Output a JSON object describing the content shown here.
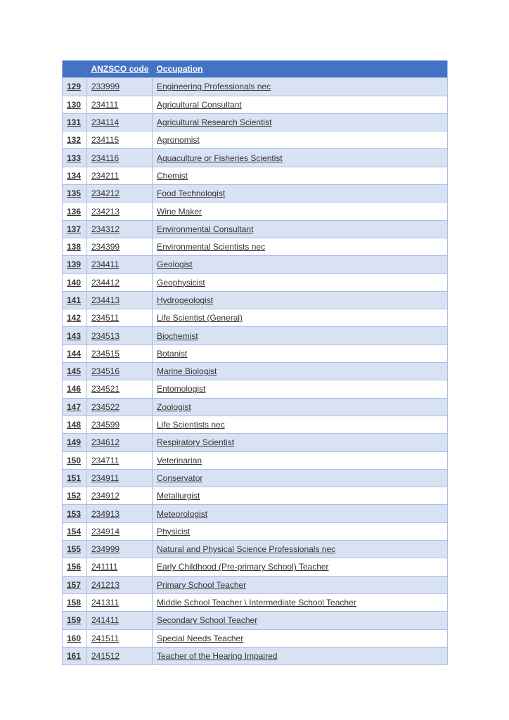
{
  "table": {
    "headers": [
      "",
      "ANZSCO code",
      "Occupation"
    ],
    "rows": [
      [
        "129",
        "233999",
        "Engineering Professionals nec"
      ],
      [
        "130",
        "234111",
        "Agricultural Consultant"
      ],
      [
        "131",
        "234114",
        "Agricultural Research Scientist"
      ],
      [
        "132",
        "234115",
        "Agronomist"
      ],
      [
        "133",
        "234116",
        "Aquaculture or Fisheries Scientist"
      ],
      [
        "134",
        "234211",
        "Chemist"
      ],
      [
        "135",
        "234212",
        "Food Technologist"
      ],
      [
        "136",
        "234213",
        "Wine Maker"
      ],
      [
        "137",
        "234312",
        "Environmental Consultant"
      ],
      [
        "138",
        "234399",
        "Environmental Scientists nec"
      ],
      [
        "139",
        "234411",
        "Geologist"
      ],
      [
        "140",
        "234412",
        "Geophysicist"
      ],
      [
        "141",
        "234413",
        "Hydrogeologist"
      ],
      [
        "142",
        "234511",
        "Life Scientist (General)"
      ],
      [
        "143",
        "234513",
        "Biochemist"
      ],
      [
        "144",
        "234515",
        "Botanist"
      ],
      [
        "145",
        "234516",
        "Marine Biologist"
      ],
      [
        "146",
        "234521",
        "Entomologist"
      ],
      [
        "147",
        "234522",
        "Zoologist"
      ],
      [
        "148",
        "234599",
        "Life Scientists nec"
      ],
      [
        "149",
        "234612",
        "Respiratory Scientist"
      ],
      [
        "150",
        "234711",
        "Veterinarian"
      ],
      [
        "151",
        "234911",
        "Conservator"
      ],
      [
        "152",
        "234912",
        "Metallurgist"
      ],
      [
        "153",
        "234913",
        "Meteorologist"
      ],
      [
        "154",
        "234914",
        "Physicist"
      ],
      [
        "155",
        "234999",
        "Natural and Physical Science Professionals nec"
      ],
      [
        "156",
        "241111",
        "Early Childhood (Pre-primary School) Teacher"
      ],
      [
        "157",
        "241213",
        "Primary School Teacher"
      ],
      [
        "158",
        "241311",
        "Middle School Teacher \\ Intermediate School Teacher"
      ],
      [
        "159",
        "241411",
        "Secondary School Teacher"
      ],
      [
        "160",
        "241511",
        "Special Needs Teacher"
      ],
      [
        "161",
        "241512",
        "Teacher of the Hearing Impaired"
      ]
    ]
  },
  "colors": {
    "header": "#4472c4",
    "band": "#d9e2f3",
    "border": "#a9bfe6"
  }
}
